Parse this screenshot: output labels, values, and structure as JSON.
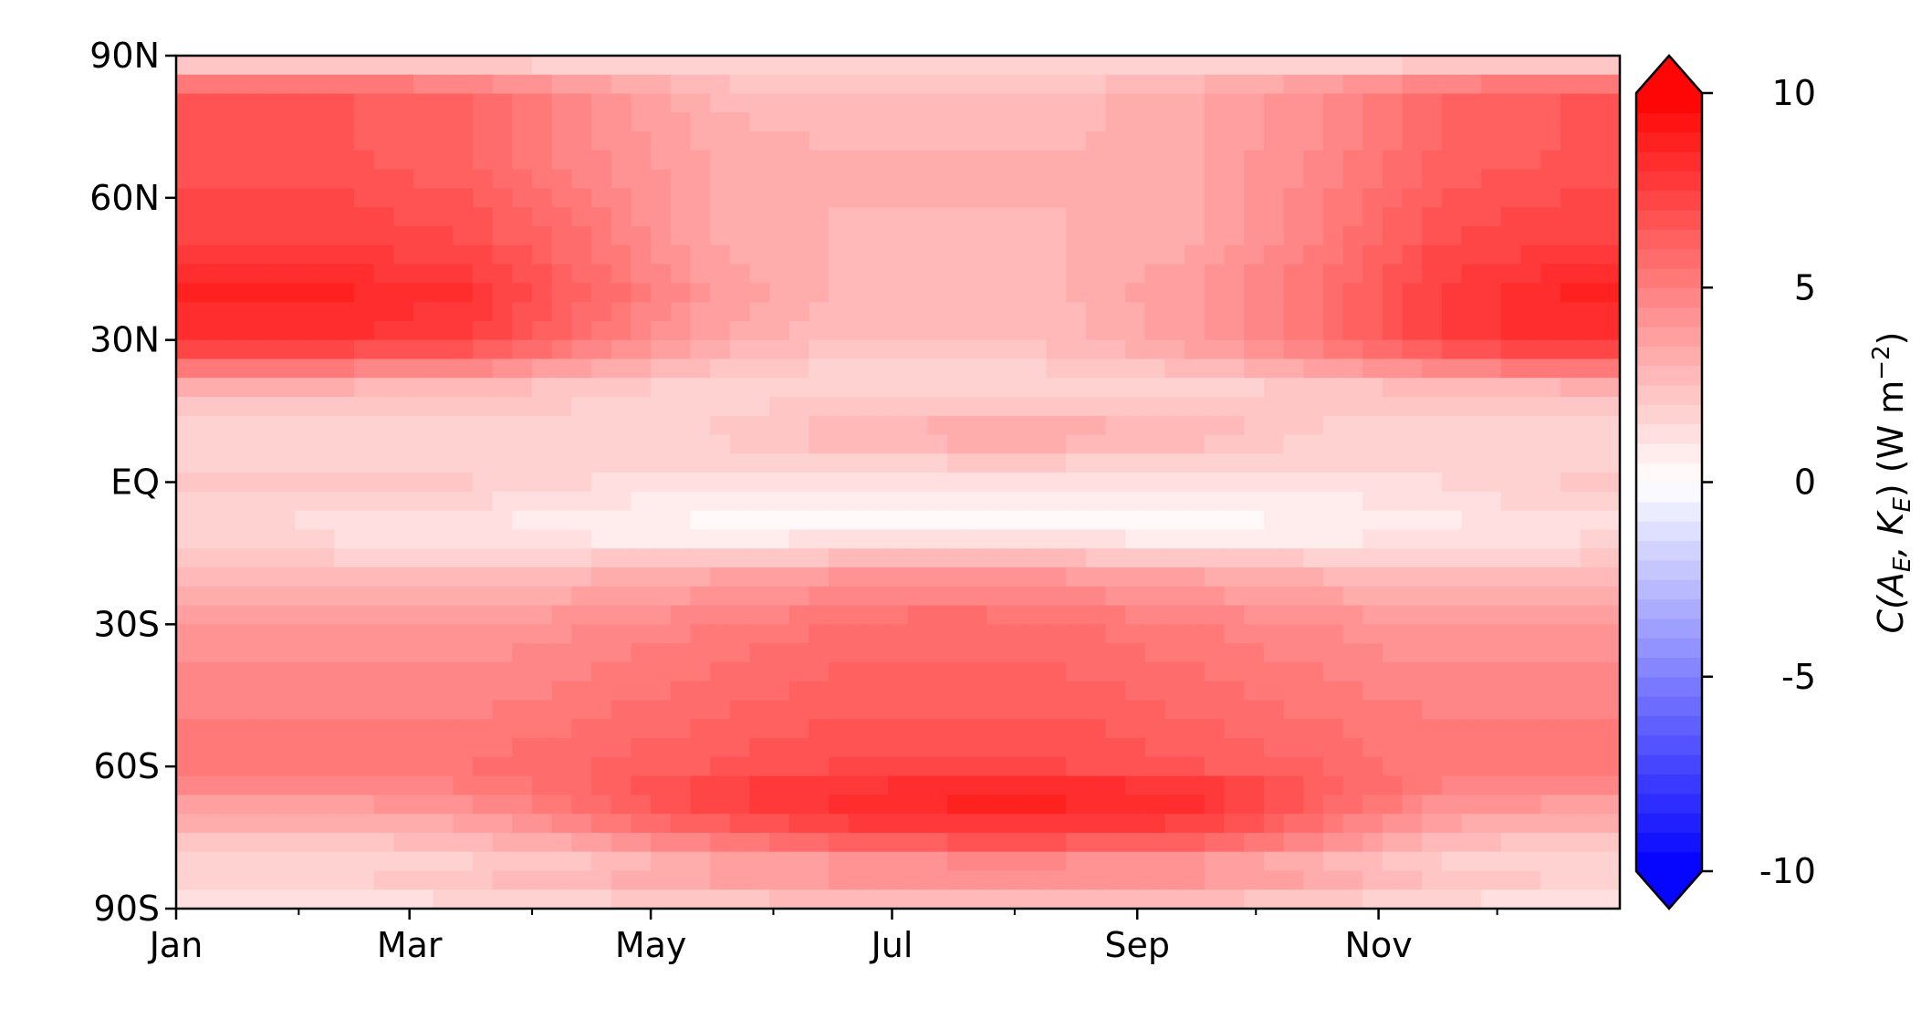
{
  "chart_data": {
    "type": "heatmap",
    "title": "",
    "xlabel": "",
    "ylabel": "",
    "x_ticks": [
      {
        "label": "Jan",
        "day": 0
      },
      {
        "label": "Mar",
        "day": 59
      },
      {
        "label": "May",
        "day": 120
      },
      {
        "label": "Jul",
        "day": 181
      },
      {
        "label": "Sep",
        "day": 243
      },
      {
        "label": "Nov",
        "day": 304
      }
    ],
    "x_minor_days": [
      31,
      90,
      151,
      212,
      273,
      334
    ],
    "x_range_days": [
      0,
      365
    ],
    "y_ticks": [
      {
        "label": "90N",
        "lat": 90
      },
      {
        "label": "60N",
        "lat": 60
      },
      {
        "label": "30N",
        "lat": 30
      },
      {
        "label": "EQ",
        "lat": 0
      },
      {
        "label": "30S",
        "lat": -30
      },
      {
        "label": "60S",
        "lat": -60
      },
      {
        "label": "90S",
        "lat": -90
      }
    ],
    "y_range_lat": [
      -90,
      90
    ],
    "latitudes": [
      90,
      85,
      80,
      70,
      60,
      50,
      40,
      30,
      20,
      10,
      0,
      -10,
      -20,
      -30,
      -40,
      -50,
      -60,
      -65,
      -70,
      -75,
      -80,
      -85,
      -90
    ],
    "months": [
      "Jan",
      "Feb",
      "Mar",
      "Apr",
      "May",
      "Jun",
      "Jul",
      "Aug",
      "Sep",
      "Oct",
      "Nov",
      "Dec"
    ],
    "month_mid_days": [
      15,
      45,
      74,
      105,
      135,
      166,
      196,
      227,
      258,
      288,
      319,
      349
    ],
    "values": [
      [
        0.5,
        0.5,
        0.6,
        0.8,
        1.2,
        1.5,
        1.6,
        1.5,
        1.2,
        0.8,
        0.4,
        0.2
      ],
      [
        5.0,
        5.0,
        4.5,
        3.5,
        2.5,
        2.0,
        2.0,
        2.2,
        2.8,
        3.5,
        4.5,
        5.0
      ],
      [
        6.5,
        6.5,
        6.0,
        4.5,
        3.0,
        2.5,
        2.5,
        2.8,
        3.5,
        4.5,
        6.0,
        6.5
      ],
      [
        6.5,
        6.5,
        6.0,
        4.5,
        3.5,
        3.0,
        3.0,
        3.0,
        3.5,
        4.5,
        6.0,
        6.5
      ],
      [
        7.0,
        7.0,
        6.5,
        5.0,
        3.5,
        3.0,
        3.0,
        3.0,
        3.5,
        4.8,
        6.5,
        7.0
      ],
      [
        7.5,
        7.5,
        7.0,
        5.5,
        3.5,
        3.0,
        2.8,
        3.0,
        3.5,
        5.0,
        7.0,
        7.5
      ],
      [
        8.5,
        8.5,
        8.0,
        6.0,
        4.0,
        3.0,
        2.8,
        3.0,
        4.0,
        5.5,
        7.5,
        8.5
      ],
      [
        8.0,
        8.0,
        7.5,
        5.5,
        3.5,
        2.5,
        2.5,
        2.8,
        4.0,
        5.5,
        7.5,
        8.5
      ],
      [
        3.0,
        3.0,
        2.8,
        2.2,
        1.8,
        1.5,
        1.5,
        1.5,
        1.8,
        2.2,
        2.8,
        3.0
      ],
      [
        1.5,
        1.5,
        1.5,
        1.5,
        2.0,
        3.0,
        3.5,
        3.5,
        3.0,
        2.0,
        1.5,
        1.5
      ],
      [
        2.0,
        2.0,
        2.0,
        1.5,
        1.2,
        1.0,
        1.0,
        1.0,
        1.0,
        1.2,
        1.5,
        2.0
      ],
      [
        1.5,
        1.2,
        1.0,
        0.5,
        0.3,
        0.3,
        0.3,
        0.3,
        0.3,
        0.4,
        0.8,
        1.2
      ],
      [
        2.5,
        2.5,
        2.5,
        3.0,
        3.5,
        4.0,
        4.2,
        4.0,
        3.5,
        3.0,
        2.5,
        2.5
      ],
      [
        4.0,
        4.0,
        4.0,
        4.5,
        5.0,
        5.5,
        6.0,
        5.5,
        5.0,
        4.5,
        4.0,
        4.0
      ],
      [
        4.5,
        4.5,
        4.5,
        5.0,
        5.5,
        6.0,
        6.0,
        6.0,
        5.5,
        5.0,
        4.5,
        4.5
      ],
      [
        5.0,
        5.0,
        5.0,
        5.5,
        6.0,
        6.5,
        6.5,
        6.5,
        6.0,
        5.5,
        5.0,
        5.0
      ],
      [
        5.0,
        5.0,
        5.5,
        6.0,
        6.5,
        7.0,
        7.0,
        7.0,
        6.5,
        6.0,
        5.0,
        5.0
      ],
      [
        4.5,
        4.5,
        5.0,
        6.0,
        7.5,
        8.0,
        8.5,
        8.5,
        8.0,
        6.5,
        5.0,
        4.5
      ],
      [
        3.5,
        3.5,
        4.0,
        5.5,
        7.0,
        8.0,
        8.5,
        8.5,
        8.0,
        6.0,
        4.0,
        3.5
      ],
      [
        2.5,
        2.5,
        3.0,
        4.0,
        5.5,
        6.5,
        7.0,
        7.0,
        6.5,
        5.0,
        3.0,
        2.5
      ],
      [
        1.5,
        1.5,
        2.0,
        2.5,
        3.5,
        4.0,
        4.5,
        4.5,
        4.0,
        3.0,
        2.0,
        1.5
      ],
      [
        2.0,
        2.0,
        2.5,
        3.0,
        3.5,
        4.0,
        4.0,
        4.0,
        4.0,
        3.5,
        2.5,
        2.0
      ],
      [
        0.8,
        0.8,
        1.0,
        1.2,
        1.5,
        1.8,
        2.0,
        2.0,
        1.8,
        1.5,
        1.0,
        0.8
      ]
    ],
    "colorbar": {
      "min": -10,
      "max": 10,
      "levels": 40,
      "extend": "both",
      "colormap": "bwr",
      "colors": {
        "low": "#0000ff",
        "mid": "#ffffff",
        "high": "#ff0000"
      },
      "ticks": [
        {
          "label": "10",
          "value": 10
        },
        {
          "label": "5",
          "value": 5
        },
        {
          "label": "0",
          "value": 0
        },
        {
          "label": "-5",
          "value": -5
        },
        {
          "label": "-10",
          "value": -10
        }
      ],
      "label": {
        "prefix": "C(",
        "a": "A",
        "a_sub": "E",
        "sep": ", ",
        "k": "K",
        "k_sub": "E",
        "close": ")",
        "units_open": " (W m",
        "units_exp": "−2",
        "units_close": ")"
      }
    }
  }
}
